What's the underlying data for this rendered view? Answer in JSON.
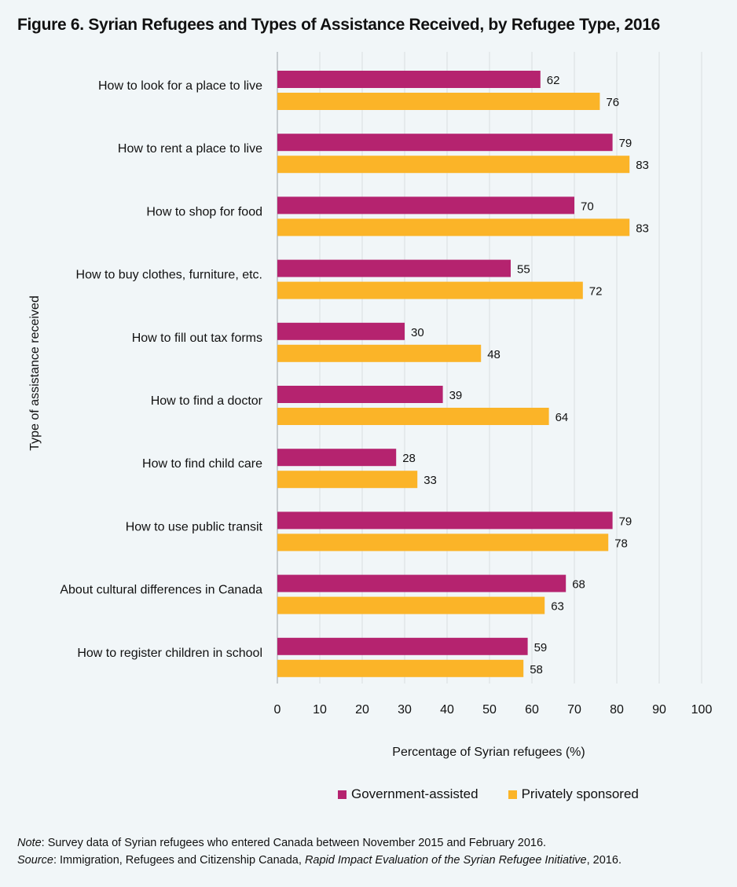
{
  "title": "Figure 6. Syrian Refugees and Types of Assistance Received, by Refugee Type, 2016",
  "colors": {
    "government": "#b5236f",
    "private": "#fbb428",
    "grid": "#d9dee1",
    "background": "#f1f6f8"
  },
  "legend": {
    "government": "Government-assisted",
    "private": "Privately sponsored"
  },
  "notes": {
    "note_label": "Note",
    "note_text": ": Survey data of Syrian refugees who entered Canada between November 2015 and February 2016.",
    "source_label": "Source",
    "source_text_1": ": Immigration, Refugees and Citizenship Canada, ",
    "source_italic": "Rapid Impact Evaluation of the Syrian Refugee Initiative",
    "source_text_2": ", 2016."
  },
  "chart_data": {
    "type": "bar",
    "orientation": "horizontal",
    "categories": [
      "How to look for a place to live",
      "How to rent a place to live",
      "How to shop for food",
      "How to buy clothes, furniture, etc.",
      "How to fill out tax forms",
      "How to find a doctor",
      "How to find child care",
      "How to use public transit",
      "About cultural differences in Canada",
      "How to register children in school"
    ],
    "series": [
      {
        "name": "Government-assisted",
        "values": [
          62,
          79,
          70,
          55,
          30,
          39,
          28,
          79,
          68,
          59
        ]
      },
      {
        "name": "Privately sponsored",
        "values": [
          76,
          83,
          83,
          72,
          48,
          64,
          33,
          78,
          63,
          58
        ]
      }
    ],
    "xlabel": "Percentage of Syrian refugees (%)",
    "ylabel": "Type of assistance received",
    "xlim": [
      0,
      100
    ],
    "xticks": [
      0,
      10,
      20,
      30,
      40,
      50,
      60,
      70,
      80,
      90,
      100
    ],
    "grid": "vertical",
    "legend_position": "bottom"
  }
}
